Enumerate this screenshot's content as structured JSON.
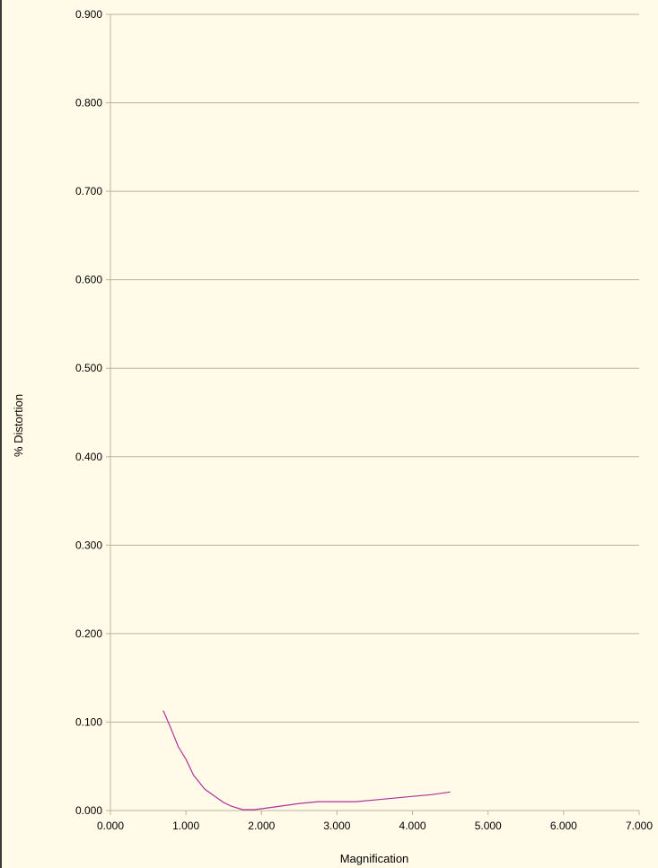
{
  "chart_data": {
    "type": "line",
    "title": "",
    "xlabel": "Magnification",
    "ylabel": "% Distortion",
    "xlim": [
      0,
      7
    ],
    "ylim": [
      0,
      0.9
    ],
    "x_ticks": [
      "0.000",
      "1.000",
      "2.000",
      "3.000",
      "4.000",
      "5.000",
      "6.000",
      "7.000"
    ],
    "y_ticks": [
      "0.000",
      "0.100",
      "0.200",
      "0.300",
      "0.400",
      "0.500",
      "0.600",
      "0.700",
      "0.800",
      "0.900"
    ],
    "grid": "horizontal",
    "colors": {
      "background": "#fffbe8",
      "grid": "#b8b49a",
      "series": "#b0309c"
    },
    "series": [
      {
        "x": [
          0.7,
          0.8,
          0.9,
          1.0,
          1.1,
          1.25,
          1.4,
          1.5,
          1.6,
          1.75,
          1.9,
          2.0,
          2.25,
          2.5,
          2.75,
          3.0,
          3.25,
          3.5,
          3.75,
          4.0,
          4.25,
          4.5
        ],
        "y": [
          0.113,
          0.093,
          0.072,
          0.058,
          0.04,
          0.024,
          0.015,
          0.009,
          0.005,
          0.001,
          0.001,
          0.002,
          0.005,
          0.008,
          0.01,
          0.01,
          0.01,
          0.012,
          0.014,
          0.016,
          0.018,
          0.021
        ]
      }
    ]
  }
}
